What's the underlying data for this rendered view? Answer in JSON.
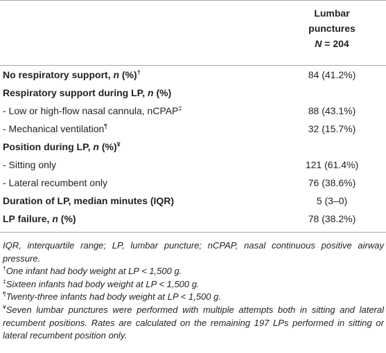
{
  "header": {
    "line1": "Lumbar",
    "line2": "punctures",
    "n_label": "N",
    "n_value": "= 204"
  },
  "rows": [
    {
      "label": "No respiratory support, ",
      "label_italic": "n",
      "label_tail": " (%)",
      "sup": "†",
      "value": "84 (41.2%)",
      "bold": true
    },
    {
      "label": "Respiratory support during LP, ",
      "label_italic": "n",
      "label_tail": " (%)",
      "sup": "",
      "value": "",
      "bold": true
    },
    {
      "label": "- Low or high-flow nasal cannula, nCPAP",
      "label_italic": "",
      "label_tail": "",
      "sup": "‡",
      "value": "88 (43.1%)",
      "bold": false
    },
    {
      "label": "- Mechanical ventilation",
      "label_italic": "",
      "label_tail": "",
      "sup": "¶",
      "value": "32 (15.7%)",
      "bold": false
    },
    {
      "label": "Position during LP, ",
      "label_italic": "n",
      "label_tail": " (%)",
      "sup": "¥",
      "value": "",
      "bold": true
    },
    {
      "label": "- Sitting only",
      "label_italic": "",
      "label_tail": "",
      "sup": "",
      "value": "121 (61.4%)",
      "bold": false
    },
    {
      "label": "- Lateral recumbent only",
      "label_italic": "",
      "label_tail": "",
      "sup": "",
      "value": "76 (38.6%)",
      "bold": false
    },
    {
      "label": "Duration of LP, median minutes (IQR)",
      "label_italic": "",
      "label_tail": "",
      "sup": "",
      "value": "5 (3–0)",
      "bold": true
    },
    {
      "label": "LP failure, ",
      "label_italic": "n",
      "label_tail": " (%)",
      "sup": "",
      "value": "78 (38.2%)",
      "bold": true
    }
  ],
  "notes": {
    "abbreviations": "IQR, interquartile range; LP, lumbar puncture; nCPAP, nasal continuous positive airway pressure.",
    "dagger_sup": "†",
    "dagger": "One infant had body weight at LP < 1,500 g.",
    "ddagger_sup": "‡",
    "ddagger": "Sixteen infants had body weight at LP < 1,500 g.",
    "pilcrow_sup": "¶",
    "pilcrow": "Twenty-three infants had body weight at LP < 1,500 g.",
    "yen_sup": "¥",
    "yen": "Seven lumbar punctures were performed with multiple attempts both in sitting and lateral recumbent positions. Rates are calculated on the remaining 197 LPs performed in sitting or lateral recumbent position only."
  }
}
